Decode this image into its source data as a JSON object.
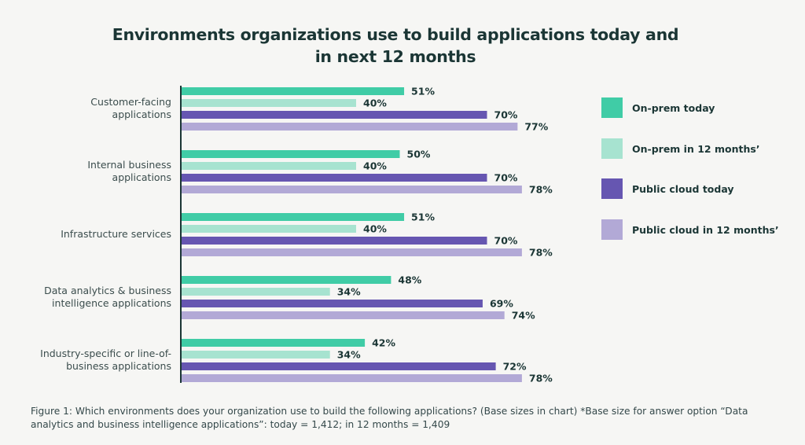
{
  "chart_data": {
    "type": "bar",
    "orientation": "horizontal",
    "title": "Environments organizations use to build applications today and in next 12 months",
    "title_lines": [
      "Environments organizations use to build applications today and",
      "in next 12 months"
    ],
    "categories": [
      [
        "Customer-facing",
        "applications"
      ],
      [
        "Internal business",
        "applications"
      ],
      [
        "Infrastructure services"
      ],
      [
        "Data analytics & business",
        "intelligence applications"
      ],
      [
        "Industry-specific or line-of-",
        "business applications"
      ]
    ],
    "series": [
      {
        "name": "On-prem today",
        "color": "#40cca6",
        "values": [
          51,
          50,
          51,
          48,
          42
        ]
      },
      {
        "name": "On-prem in 12 months’",
        "color": "#a7e3d0",
        "values": [
          40,
          40,
          40,
          34,
          34
        ]
      },
      {
        "name": "Public cloud today",
        "color": "#6656b1",
        "values": [
          70,
          70,
          70,
          69,
          72
        ]
      },
      {
        "name": "Public cloud in 12 months’",
        "color": "#b2a9d6",
        "values": [
          77,
          78,
          78,
          74,
          78
        ]
      }
    ],
    "value_suffix": "%",
    "xlim": [
      0,
      100
    ],
    "xlabel": "",
    "ylabel": "",
    "grid": false,
    "legend_position": "right",
    "axis_color": "#1b3635"
  },
  "caption_lines": [
    "Figure 1: Which environments does your organization use to build the following applications? (Base sizes in chart) *Base size for answer option “Data",
    "analytics and business intelligence applications”: today = 1,412; in 12 months = 1,409"
  ]
}
